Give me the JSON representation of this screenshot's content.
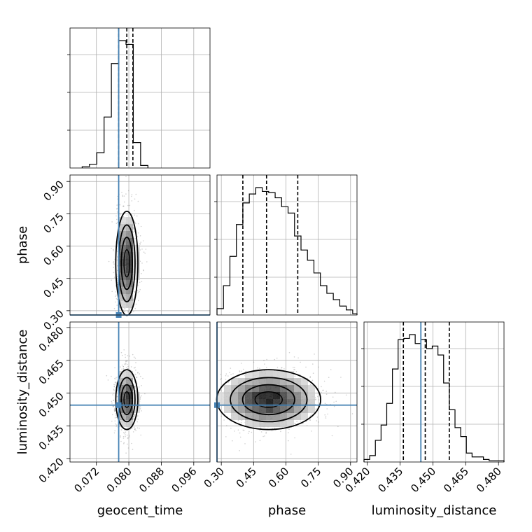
{
  "chart_data": {
    "type": "corner",
    "parameters": [
      "geocent_time",
      "phase",
      "luminosity_distance"
    ],
    "ranges": {
      "geocent_time": [
        0.0655,
        0.1
      ],
      "phase": [
        0.28,
        0.93
      ],
      "luminosity_distance": [
        0.4185,
        0.4825
      ]
    },
    "ticks": {
      "geocent_time": [
        "0.072",
        "0.080",
        "0.088",
        "0.096"
      ],
      "phase": [
        "0.30",
        "0.45",
        "0.60",
        "0.75",
        "0.90"
      ],
      "luminosity_distance": [
        "0.420",
        "0.435",
        "0.450",
        "0.465",
        "0.480"
      ]
    },
    "truths": {
      "geocent_time": 0.0775,
      "phase": 0.28,
      "luminosity_distance": 0.4445
    },
    "truth_color": "#4682b4",
    "quantiles": {
      "geocent_time": [
        0.0775,
        0.0795,
        0.081
      ],
      "phase": [
        0.4,
        0.51,
        0.655
      ],
      "luminosity_distance": [
        0.4365,
        0.4465,
        0.4575
      ]
    },
    "marginals": {
      "geocent_time": {
        "bin_edges": [
          0.0685,
          0.0703,
          0.0721,
          0.0739,
          0.0757,
          0.0775,
          0.0793,
          0.0811,
          0.0829,
          0.0847
        ],
        "counts": [
          0.01,
          0.03,
          0.12,
          0.4,
          0.82,
          1.0,
          0.97,
          0.2,
          0.02
        ]
      },
      "phase": {
        "bin_edges": [
          0.28,
          0.31,
          0.34,
          0.37,
          0.4,
          0.43,
          0.46,
          0.49,
          0.52,
          0.55,
          0.58,
          0.61,
          0.64,
          0.67,
          0.7,
          0.73,
          0.76,
          0.79,
          0.82,
          0.85,
          0.88,
          0.91,
          0.93
        ],
        "counts": [
          0.05,
          0.23,
          0.46,
          0.71,
          0.88,
          0.95,
          1.0,
          0.97,
          0.96,
          0.92,
          0.85,
          0.8,
          0.62,
          0.51,
          0.43,
          0.33,
          0.23,
          0.17,
          0.12,
          0.07,
          0.04,
          0.01
        ]
      },
      "luminosity_distance": {
        "bin_edges": [
          0.4185,
          0.4211,
          0.4237,
          0.4263,
          0.4289,
          0.4315,
          0.4341,
          0.4367,
          0.4393,
          0.4419,
          0.4445,
          0.4471,
          0.4497,
          0.4523,
          0.4549,
          0.4575,
          0.4601,
          0.4627,
          0.4653,
          0.4679,
          0.4705,
          0.4731,
          0.4757,
          0.4783,
          0.4809,
          0.4825
        ],
        "counts": [
          0.02,
          0.05,
          0.17,
          0.29,
          0.46,
          0.73,
          0.96,
          0.97,
          1.0,
          0.93,
          0.96,
          0.89,
          0.91,
          0.84,
          0.62,
          0.41,
          0.27,
          0.2,
          0.07,
          0.04,
          0.04,
          0.02,
          0.01,
          0.01,
          0.01
        ]
      }
    },
    "joint": [
      {
        "x": "geocent_time",
        "y": "phase",
        "center": [
          0.0795,
          0.52
        ],
        "sd": [
          0.0013,
          0.115
        ]
      },
      {
        "x": "geocent_time",
        "y": "luminosity_distance",
        "center": [
          0.0795,
          0.447
        ],
        "sd": [
          0.0013,
          0.0065
        ]
      },
      {
        "x": "phase",
        "y": "luminosity_distance",
        "center": [
          0.52,
          0.447
        ],
        "sd": [
          0.115,
          0.0065
        ]
      }
    ],
    "grid": true,
    "legend": "none"
  }
}
